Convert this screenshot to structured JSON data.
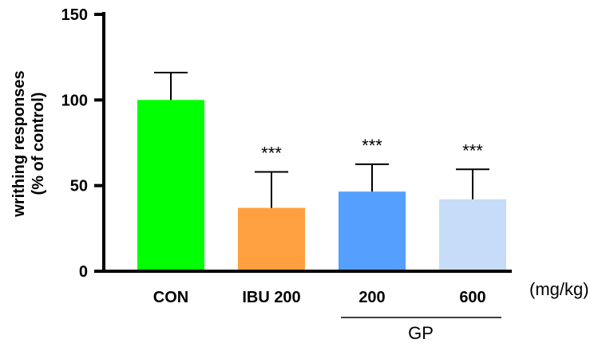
{
  "chart_data": {
    "type": "bar",
    "categories": [
      "CON",
      "IBU 200",
      "200",
      "600"
    ],
    "values": [
      100,
      37,
      46.5,
      42
    ],
    "error_upper": [
      116,
      58,
      62.5,
      59.5
    ],
    "significance": [
      "",
      "***",
      "***",
      "***"
    ],
    "colors": [
      "#00ff00",
      "#ffa040",
      "#559fff",
      "#c6dcf8"
    ],
    "ylabel_line1": "writhing responses",
    "ylabel_line2": "(% of control)",
    "ylim": [
      0,
      150
    ],
    "yticks": [
      0,
      50,
      100,
      150
    ],
    "x_unit": "(mg/kg)",
    "group_label": "GP"
  }
}
